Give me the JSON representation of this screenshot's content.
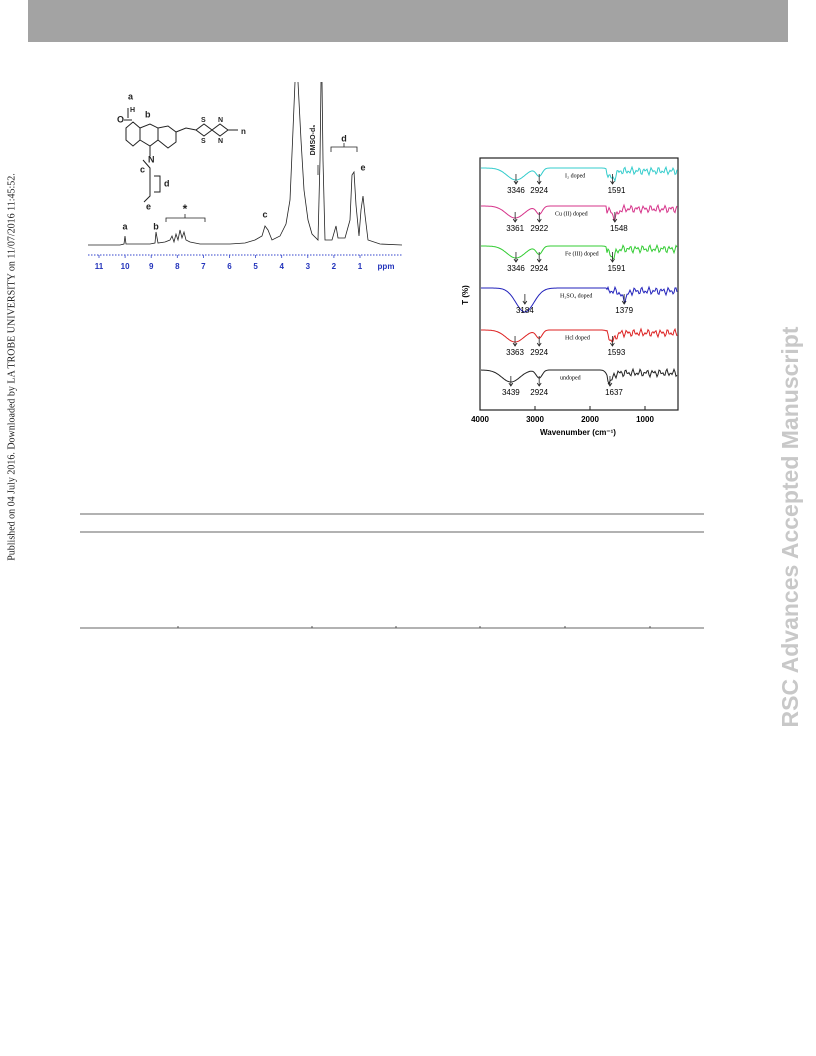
{
  "side_note": "Published on 04 July 2016. Downloaded by LA TROBE UNIVERSITY on 11/07/2016 11:45:52.",
  "watermark": "RSC Advances Accepted Manuscript",
  "nmr_figure": {
    "structure_labels": [
      "a",
      "O",
      "H",
      "b",
      "N",
      "c",
      "d",
      "e",
      "S",
      "S",
      "N",
      "N",
      "n"
    ],
    "peak_labels": [
      "a",
      "b",
      "*",
      "c",
      "DMSO-d₆",
      "d",
      "e"
    ],
    "axis_ticks": [
      11,
      10,
      9,
      8,
      7,
      6,
      5,
      4,
      3,
      2,
      1
    ],
    "axis_unit": "ppm"
  },
  "ftir_figure": {
    "y_label": "T (%)",
    "x_label": "Wavenumber (cm⁻¹)",
    "x_ticks": [
      4000,
      3000,
      2000,
      1000
    ],
    "traces": [
      {
        "name": "I₂ doped",
        "color": "#33cccc",
        "peaks": [
          3346,
          2924,
          1591
        ]
      },
      {
        "name": "Cu (II) doped",
        "color": "#d6338a",
        "peaks": [
          3361,
          2922,
          1548
        ]
      },
      {
        "name": "Fe (III) doped",
        "color": "#33cc33",
        "peaks": [
          3346,
          2924,
          1591
        ]
      },
      {
        "name": "H₂SO₄ doped",
        "color": "#2222bb",
        "peaks": [
          3184,
          1379
        ]
      },
      {
        "name": "Hcl doped",
        "color": "#dd2222",
        "peaks": [
          3363,
          2924,
          1593
        ]
      },
      {
        "name": "undoped",
        "color": "#222222",
        "peaks": [
          3439,
          2924,
          1637
        ]
      }
    ]
  }
}
